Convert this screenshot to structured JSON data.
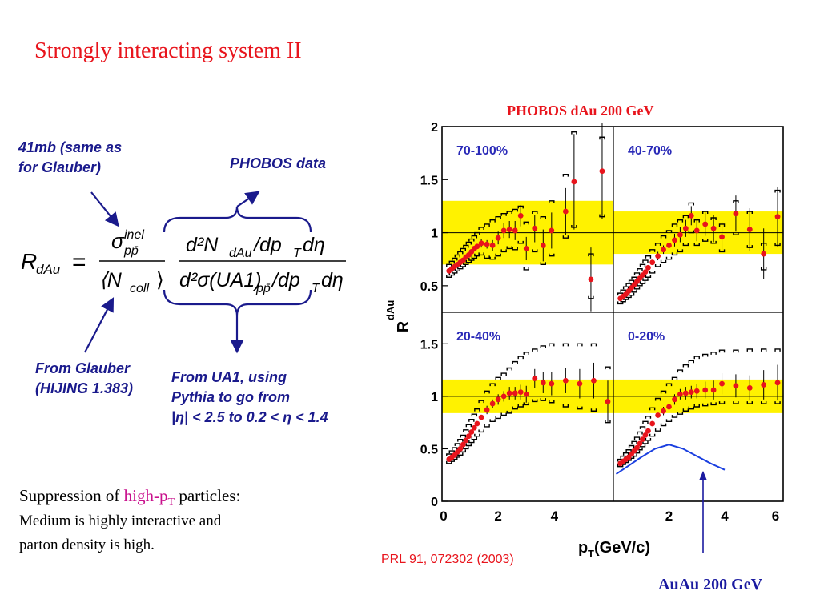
{
  "slide": {
    "title": "Strongly interacting system II",
    "notes": {
      "top_left": [
        "41mb (same as",
        "for Glauber)"
      ],
      "phobos": "PHOBOS data",
      "glauber": [
        "From Glauber",
        "(HIJING 1.383)"
      ],
      "ua1": [
        "From UA1, using",
        "Pythia to go from",
        "|η| < 2.5 to 0.2 < η < 1.4"
      ]
    },
    "formula": {
      "lhs": "R",
      "lhs_sub": "dAu",
      "num1": "σ",
      "num1_sup": "inel",
      "num1_sub": "pp̄",
      "den1": "⟨N",
      "den1_sub": "coll",
      "den1_end": "⟩",
      "num2": "d²N",
      "num2_sub": "dAu",
      "num2_end": "/dp",
      "num2_sub2": "T",
      "num2_end2": "dη",
      "den2": "d²σ(UA1)",
      "den2_sub": "pp̄",
      "den2_end": "/dp",
      "den2_sub2": "T",
      "den2_end2": "dη"
    },
    "bottom": {
      "line1_a": "Suppression of ",
      "line1_hl": "high-p",
      "line1_hl_sub": "T",
      "line1_b": " particles:",
      "line2": "Medium is highly interactive and",
      "line3": "parton density is high."
    },
    "chart_heading": "PHOBOS dAu 200 GeV",
    "reference": "PRL 91, 072302 (2003)",
    "auau_label": "AuAu 200 GeV"
  },
  "colors": {
    "title": "#e8141c",
    "notes": "#1a1a8c",
    "band": "#fff200",
    "point": "#e8141c",
    "auau_curve": "#1a3fe0",
    "panel_label": "#2a2ab8"
  },
  "chart_data": {
    "type": "scatter",
    "ylabel": "R",
    "ylabel_sub": "dAu",
    "xlabel": "p",
    "xlabel_sub": "T",
    "xlabel_units": " (GeV/c)",
    "xlim": [
      0,
      6
    ],
    "ylim": [
      0,
      2
    ],
    "x_ticks": [
      "0",
      "2",
      "4",
      "6"
    ],
    "y_ticks": [
      "0",
      "0.5",
      "1",
      "1.5",
      "2"
    ],
    "panels": [
      {
        "label": "70-100%",
        "band": [
          0.7,
          1.3
        ],
        "points": [
          [
            0.25,
            0.64
          ],
          [
            0.35,
            0.66
          ],
          [
            0.45,
            0.68
          ],
          [
            0.55,
            0.7
          ],
          [
            0.65,
            0.72
          ],
          [
            0.75,
            0.74
          ],
          [
            0.85,
            0.77
          ],
          [
            0.95,
            0.79
          ],
          [
            1.05,
            0.82
          ],
          [
            1.15,
            0.85
          ],
          [
            1.25,
            0.87
          ],
          [
            1.4,
            0.9
          ],
          [
            1.6,
            0.89
          ],
          [
            1.8,
            0.88
          ],
          [
            2.0,
            0.95
          ],
          [
            2.2,
            1.02
          ],
          [
            2.4,
            1.03
          ],
          [
            2.6,
            1.02
          ],
          [
            2.8,
            1.16
          ],
          [
            3.0,
            0.85
          ],
          [
            3.3,
            1.04
          ],
          [
            3.6,
            0.88
          ],
          [
            3.9,
            1.02
          ],
          [
            4.4,
            1.2
          ],
          [
            4.7,
            1.48
          ],
          [
            5.3,
            0.56
          ],
          [
            5.7,
            1.58
          ]
        ],
        "errors": [
          0.02,
          0.02,
          0.02,
          0.02,
          0.02,
          0.02,
          0.02,
          0.02,
          0.03,
          0.03,
          0.03,
          0.04,
          0.04,
          0.05,
          0.06,
          0.07,
          0.08,
          0.09,
          0.1,
          0.11,
          0.13,
          0.15,
          0.17,
          0.22,
          0.45,
          0.3,
          0.45
        ],
        "sys_upper": [
          0.7,
          0.73,
          0.76,
          0.79,
          0.82,
          0.85,
          0.88,
          0.91,
          0.94,
          0.97,
          1.0,
          1.05,
          1.08,
          1.12,
          1.15,
          1.18,
          1.2,
          1.22,
          1.25,
          1.1,
          1.2,
          1.15,
          1.3,
          1.55,
          1.95,
          0.8,
          1.9
        ],
        "sys_lower": [
          0.58,
          0.6,
          0.62,
          0.64,
          0.66,
          0.68,
          0.7,
          0.72,
          0.74,
          0.76,
          0.78,
          0.79,
          0.76,
          0.75,
          0.78,
          0.82,
          0.85,
          0.84,
          0.9,
          0.65,
          0.82,
          0.7,
          0.78,
          0.95,
          1.05,
          0.38,
          1.15
        ]
      },
      {
        "label": "40-70%",
        "band": [
          0.8,
          1.2
        ],
        "points": [
          [
            0.25,
            0.38
          ],
          [
            0.35,
            0.4
          ],
          [
            0.45,
            0.42
          ],
          [
            0.55,
            0.45
          ],
          [
            0.65,
            0.48
          ],
          [
            0.75,
            0.51
          ],
          [
            0.85,
            0.54
          ],
          [
            0.95,
            0.57
          ],
          [
            1.05,
            0.6
          ],
          [
            1.15,
            0.63
          ],
          [
            1.25,
            0.67
          ],
          [
            1.4,
            0.72
          ],
          [
            1.6,
            0.78
          ],
          [
            1.8,
            0.84
          ],
          [
            2.0,
            0.88
          ],
          [
            2.2,
            0.93
          ],
          [
            2.4,
            0.98
          ],
          [
            2.6,
            1.04
          ],
          [
            2.8,
            1.16
          ],
          [
            3.0,
            1.02
          ],
          [
            3.3,
            1.08
          ],
          [
            3.6,
            1.04
          ],
          [
            3.9,
            0.96
          ],
          [
            4.4,
            1.18
          ],
          [
            4.9,
            1.03
          ],
          [
            5.4,
            0.8
          ],
          [
            5.9,
            1.15
          ]
        ],
        "errors": [
          0.02,
          0.02,
          0.02,
          0.02,
          0.02,
          0.02,
          0.02,
          0.02,
          0.03,
          0.03,
          0.03,
          0.03,
          0.04,
          0.04,
          0.05,
          0.06,
          0.07,
          0.08,
          0.09,
          0.1,
          0.11,
          0.13,
          0.14,
          0.17,
          0.2,
          0.24,
          0.28
        ],
        "sys_upper": [
          0.43,
          0.46,
          0.49,
          0.52,
          0.55,
          0.58,
          0.62,
          0.66,
          0.7,
          0.74,
          0.78,
          0.84,
          0.9,
          0.97,
          1.02,
          1.08,
          1.12,
          1.16,
          1.28,
          1.12,
          1.2,
          1.14,
          1.08,
          1.3,
          1.2,
          0.9,
          1.4
        ],
        "sys_lower": [
          0.33,
          0.35,
          0.37,
          0.39,
          0.41,
          0.44,
          0.47,
          0.5,
          0.52,
          0.55,
          0.58,
          0.62,
          0.68,
          0.72,
          0.75,
          0.79,
          0.82,
          0.88,
          1.0,
          0.88,
          0.92,
          0.9,
          0.82,
          0.98,
          0.86,
          0.65,
          0.88
        ]
      },
      {
        "label": "20-40%",
        "band": [
          0.84,
          1.16
        ],
        "points": [
          [
            0.25,
            0.4
          ],
          [
            0.35,
            0.42
          ],
          [
            0.45,
            0.44
          ],
          [
            0.55,
            0.47
          ],
          [
            0.65,
            0.5
          ],
          [
            0.75,
            0.54
          ],
          [
            0.85,
            0.58
          ],
          [
            0.95,
            0.62
          ],
          [
            1.05,
            0.66
          ],
          [
            1.15,
            0.7
          ],
          [
            1.25,
            0.74
          ],
          [
            1.4,
            0.8
          ],
          [
            1.6,
            0.87
          ],
          [
            1.8,
            0.93
          ],
          [
            2.0,
            0.97
          ],
          [
            2.2,
            1.0
          ],
          [
            2.4,
            1.03
          ],
          [
            2.6,
            1.03
          ],
          [
            2.8,
            1.04
          ],
          [
            3.0,
            1.02
          ],
          [
            3.3,
            1.17
          ],
          [
            3.6,
            1.13
          ],
          [
            3.9,
            1.12
          ],
          [
            4.4,
            1.15
          ],
          [
            4.9,
            1.12
          ],
          [
            5.4,
            1.15
          ],
          [
            5.9,
            0.95
          ]
        ],
        "errors": [
          0.02,
          0.02,
          0.02,
          0.02,
          0.02,
          0.02,
          0.02,
          0.02,
          0.02,
          0.03,
          0.03,
          0.03,
          0.04,
          0.04,
          0.05,
          0.05,
          0.06,
          0.06,
          0.07,
          0.08,
          0.09,
          0.1,
          0.11,
          0.12,
          0.14,
          0.17,
          0.2
        ],
        "sys_upper": [
          0.45,
          0.48,
          0.51,
          0.55,
          0.59,
          0.63,
          0.68,
          0.73,
          0.78,
          0.83,
          0.88,
          0.96,
          1.05,
          1.12,
          1.18,
          1.22,
          1.27,
          1.33,
          1.38,
          1.42,
          1.45,
          1.48,
          1.5,
          1.5,
          1.5,
          1.5,
          1.28
        ],
        "sys_lower": [
          0.36,
          0.38,
          0.4,
          0.42,
          0.44,
          0.47,
          0.5,
          0.53,
          0.56,
          0.59,
          0.62,
          0.66,
          0.71,
          0.76,
          0.79,
          0.82,
          0.84,
          0.88,
          0.9,
          0.92,
          0.95,
          0.96,
          0.94,
          0.9,
          0.88,
          0.86,
          0.75
        ]
      },
      {
        "label": "0-20%",
        "band": [
          0.84,
          1.16
        ],
        "points": [
          [
            0.25,
            0.36
          ],
          [
            0.35,
            0.38
          ],
          [
            0.45,
            0.4
          ],
          [
            0.55,
            0.42
          ],
          [
            0.65,
            0.45
          ],
          [
            0.75,
            0.48
          ],
          [
            0.85,
            0.51
          ],
          [
            0.95,
            0.55
          ],
          [
            1.05,
            0.59
          ],
          [
            1.15,
            0.63
          ],
          [
            1.25,
            0.67
          ],
          [
            1.4,
            0.74
          ],
          [
            1.6,
            0.82
          ],
          [
            1.8,
            0.86
          ],
          [
            2.0,
            0.9
          ],
          [
            2.2,
            0.97
          ],
          [
            2.4,
            1.02
          ],
          [
            2.6,
            1.03
          ],
          [
            2.8,
            1.04
          ],
          [
            3.0,
            1.05
          ],
          [
            3.3,
            1.06
          ],
          [
            3.6,
            1.06
          ],
          [
            3.9,
            1.12
          ],
          [
            4.4,
            1.1
          ],
          [
            4.9,
            1.08
          ],
          [
            5.4,
            1.11
          ],
          [
            5.9,
            1.13
          ]
        ],
        "errors": [
          0.02,
          0.02,
          0.02,
          0.02,
          0.02,
          0.02,
          0.02,
          0.02,
          0.02,
          0.02,
          0.03,
          0.03,
          0.03,
          0.04,
          0.04,
          0.05,
          0.05,
          0.06,
          0.06,
          0.07,
          0.08,
          0.09,
          0.1,
          0.11,
          0.12,
          0.14,
          0.17
        ],
        "sys_upper": [
          0.4,
          0.43,
          0.46,
          0.49,
          0.53,
          0.57,
          0.61,
          0.66,
          0.71,
          0.76,
          0.81,
          0.89,
          0.98,
          1.05,
          1.12,
          1.18,
          1.25,
          1.3,
          1.34,
          1.38,
          1.4,
          1.42,
          1.44,
          1.44,
          1.45,
          1.45,
          1.45
        ],
        "sys_lower": [
          0.33,
          0.35,
          0.37,
          0.39,
          0.41,
          0.43,
          0.46,
          0.49,
          0.52,
          0.55,
          0.58,
          0.62,
          0.67,
          0.72,
          0.76,
          0.8,
          0.83,
          0.86,
          0.88,
          0.9,
          0.91,
          0.92,
          0.93,
          0.93,
          0.93,
          0.93,
          0.93
        ]
      }
    ],
    "auau_curve": [
      [
        0.1,
        0.26
      ],
      [
        0.5,
        0.33
      ],
      [
        1.0,
        0.42
      ],
      [
        1.5,
        0.5
      ],
      [
        2.0,
        0.54
      ],
      [
        2.5,
        0.5
      ],
      [
        3.0,
        0.43
      ],
      [
        3.5,
        0.36
      ],
      [
        4.0,
        0.3
      ]
    ]
  }
}
